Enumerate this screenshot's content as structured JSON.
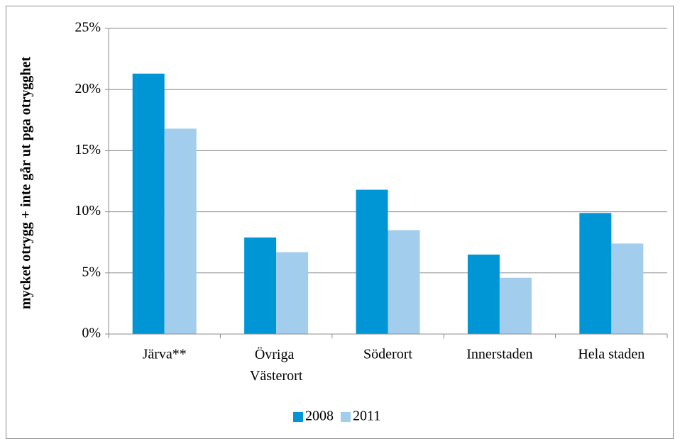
{
  "chart_data": {
    "type": "bar",
    "y_label": "mycket otrygg + inte går ut pga otrygghet",
    "categories": [
      "Järva**",
      "Övriga Västerort",
      "Söderort",
      "Innerstaden",
      "Hela staden"
    ],
    "series": [
      {
        "name": "2008",
        "color": "#0096d6",
        "values": [
          21.3,
          7.9,
          11.8,
          6.5,
          9.9
        ]
      },
      {
        "name": "2011",
        "color": "#a3cdec",
        "values": [
          16.8,
          6.7,
          8.5,
          4.6,
          7.4
        ]
      }
    ],
    "ylim": [
      0,
      25
    ],
    "yticks": [
      {
        "value": 0,
        "label": "0%"
      },
      {
        "value": 5,
        "label": "5%"
      },
      {
        "value": 10,
        "label": "10%"
      },
      {
        "value": 15,
        "label": "15%"
      },
      {
        "value": 20,
        "label": "20%"
      },
      {
        "value": 25,
        "label": "25%"
      }
    ],
    "grid": true,
    "legend": "bottom"
  }
}
